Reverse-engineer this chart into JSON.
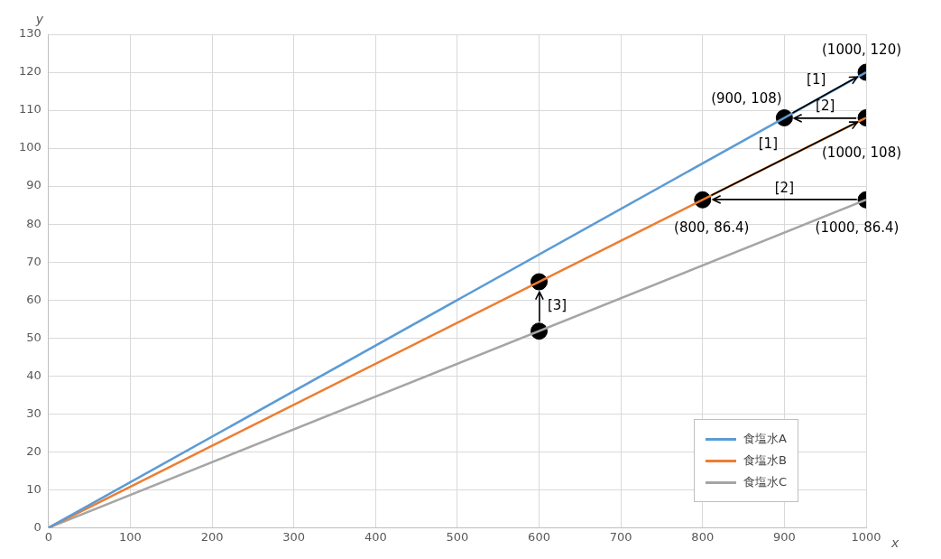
{
  "chart_data": {
    "type": "line",
    "xlabel": "x",
    "ylabel": "y",
    "xlim": [
      0,
      1000
    ],
    "ylim": [
      0,
      130
    ],
    "xticks": [
      0,
      100,
      200,
      300,
      400,
      500,
      600,
      700,
      800,
      900,
      1000
    ],
    "yticks": [
      0,
      10,
      20,
      30,
      40,
      50,
      60,
      70,
      80,
      90,
      100,
      110,
      120,
      130
    ],
    "grid": true,
    "legend": "bottom right",
    "marker": "none",
    "line_style": "solid",
    "series": [
      {
        "name": "食塩水A",
        "color": "#5b9bd5",
        "x": [
          0,
          1000
        ],
        "values": [
          0,
          120
        ]
      },
      {
        "name": "食塩水B",
        "color": "#ed7d31",
        "x": [
          0,
          1000
        ],
        "values": [
          0,
          108
        ]
      },
      {
        "name": "食塩水C",
        "color": "#a5a5a5",
        "x": [
          0,
          1000
        ],
        "values": [
          0,
          86.4
        ]
      },
      {
        "type": "scatter",
        "color": "#000000",
        "marker": "circle",
        "x": [
          1000,
          900,
          1000,
          800,
          1000,
          600,
          600
        ],
        "values": [
          120,
          108,
          108,
          86.4,
          86.4,
          64.8,
          51.8
        ]
      }
    ],
    "annotations": [
      {
        "text": "(1000, 120)",
        "x": 1000,
        "y": 120
      },
      {
        "text": "(900, 108)",
        "x": 900,
        "y": 108
      },
      {
        "text": "(1000, 108)",
        "x": 1000,
        "y": 108
      },
      {
        "text": "(800, 86.4)",
        "x": 800,
        "y": 86.4
      },
      {
        "text": "(1000, 86.4)",
        "x": 1000,
        "y": 86.4
      },
      "[1]",
      "[2]",
      "[1]",
      "[2]",
      "[3]"
    ]
  }
}
